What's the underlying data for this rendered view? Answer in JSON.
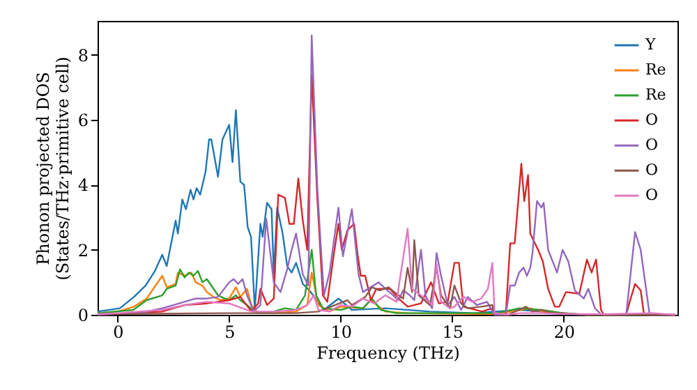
{
  "chart_data": {
    "type": "line",
    "xlabel": "Frequency (THz)",
    "ylabel": "Phonon projected DOS\n(States/THz·primitive cell)",
    "xlim": [
      -0.9,
      25.1
    ],
    "ylim": [
      0,
      9.05
    ],
    "xticks": [
      0,
      5,
      10,
      15,
      20
    ],
    "yticks": [
      0,
      2,
      4,
      6,
      8
    ],
    "legend": "top right",
    "series": [
      {
        "name": "Y",
        "color": "#1f77b4",
        "x": [
          -0.9,
          0.1,
          0.73,
          1.25,
          1.67,
          2.0,
          2.2,
          2.6,
          2.7,
          2.9,
          3.06,
          3.27,
          3.4,
          3.54,
          3.7,
          3.94,
          4.1,
          4.2,
          4.5,
          4.7,
          5.0,
          5.15,
          5.3,
          5.5,
          5.67,
          5.83,
          5.98,
          6.15,
          6.4,
          6.5,
          6.7,
          6.9,
          7.0,
          7.15,
          7.4,
          7.6,
          7.8,
          8.0,
          8.3,
          8.6,
          9.25,
          9.9,
          10.5,
          12.0,
          14.0,
          16.0,
          18.0,
          19.0,
          20.0
        ],
        "values": [
          0.1,
          0.2,
          0.55,
          0.9,
          1.35,
          1.85,
          1.5,
          2.9,
          2.5,
          3.55,
          3.25,
          3.85,
          3.55,
          3.9,
          3.7,
          4.4,
          5.4,
          5.4,
          4.25,
          5.4,
          5.85,
          4.7,
          6.3,
          4.1,
          4.0,
          2.7,
          2.4,
          0.15,
          2.8,
          2.4,
          3.45,
          3.25,
          1.25,
          3.3,
          2.5,
          1.5,
          1.3,
          1.6,
          0.95,
          0.75,
          0.15,
          0.5,
          0.15,
          0.2,
          0.1,
          0.05,
          0.15,
          0.1,
          0.05
        ]
      },
      {
        "name": "Re",
        "color": "#ff7f0e",
        "x": [
          -0.9,
          0.0,
          0.73,
          1.3,
          2.0,
          2.2,
          2.6,
          2.7,
          3.0,
          3.3,
          3.5,
          3.8,
          4.0,
          4.3,
          4.6,
          5.0,
          5.3,
          5.5,
          5.8,
          6.0,
          6.3,
          7.0,
          8.0,
          8.5,
          8.7,
          9.0,
          9.5,
          10.0,
          11.0,
          11.35,
          12.0,
          13.0,
          17.0,
          18.5,
          19.0,
          20.0
        ],
        "values": [
          0.05,
          0.1,
          0.25,
          0.5,
          1.2,
          0.85,
          0.95,
          1.3,
          1.2,
          1.3,
          1.0,
          0.9,
          0.7,
          0.55,
          0.45,
          0.5,
          0.85,
          0.55,
          0.8,
          0.3,
          0.05,
          0.05,
          0.1,
          0.3,
          1.3,
          0.3,
          0.1,
          0.25,
          0.2,
          0.45,
          0.1,
          0.05,
          0.02,
          0.2,
          0.1,
          0.05
        ]
      },
      {
        "name": "Re",
        "color": "#2ca02c",
        "x": [
          -0.9,
          0.7,
          1.3,
          2.0,
          2.2,
          2.6,
          2.8,
          3.0,
          3.2,
          3.4,
          3.6,
          3.8,
          4.0,
          4.2,
          4.5,
          4.8,
          5.0,
          5.3,
          5.5,
          5.8,
          6.2,
          7.0,
          7.5,
          8.0,
          8.4,
          8.7,
          8.9,
          9.2,
          10.0,
          10.5,
          11.0,
          11.4,
          11.8,
          12.5,
          17.0,
          18.0,
          19.0,
          20.0,
          21.0,
          25.0
        ],
        "values": [
          0.05,
          0.15,
          0.45,
          0.6,
          0.8,
          0.9,
          1.4,
          1.15,
          1.3,
          1.2,
          1.35,
          1.0,
          1.1,
          0.9,
          0.6,
          0.5,
          0.45,
          0.6,
          0.45,
          0.3,
          0.05,
          0.1,
          0.2,
          0.15,
          0.6,
          2.0,
          0.6,
          0.2,
          0.15,
          0.25,
          0.2,
          0.5,
          0.15,
          0.05,
          0.05,
          0.2,
          0.15,
          0.05,
          0.0,
          0.0
        ]
      },
      {
        "name": "O",
        "color": "#d62728",
        "x": [
          -0.9,
          2.0,
          3.0,
          4.0,
          5.0,
          5.5,
          6.0,
          6.3,
          6.4,
          6.7,
          7.0,
          7.2,
          7.5,
          7.7,
          7.9,
          8.1,
          8.3,
          8.5,
          8.7,
          8.95,
          9.2,
          9.4,
          9.7,
          9.9,
          10.05,
          10.3,
          10.6,
          10.75,
          10.9,
          11.1,
          11.35,
          11.6,
          12.2,
          12.6,
          13.0,
          13.6,
          14.05,
          14.4,
          14.8,
          15.1,
          15.3,
          15.5,
          16.35,
          16.77,
          16.9,
          17.4,
          17.6,
          17.8,
          18.1,
          18.23,
          18.4,
          18.5,
          18.85,
          19.06,
          19.3,
          19.6,
          19.8,
          20.1,
          20.7,
          21.04,
          21.25,
          21.45,
          21.67,
          21.8,
          22.8,
          23.0,
          23.2,
          23.45,
          23.6,
          25.0
        ],
        "values": [
          0.0,
          0.1,
          0.3,
          0.35,
          0.45,
          0.55,
          0.1,
          0.35,
          0.8,
          0.3,
          0.5,
          3.7,
          3.6,
          2.8,
          2.8,
          4.2,
          2.9,
          2.0,
          7.4,
          3.6,
          0.6,
          0.4,
          1.9,
          2.8,
          2.0,
          2.6,
          2.8,
          1.9,
          1.2,
          1.2,
          0.45,
          0.8,
          0.8,
          0.5,
          0.25,
          0.35,
          1.0,
          0.35,
          0.4,
          1.6,
          1.6,
          0.25,
          0.1,
          0.2,
          0.0,
          0.0,
          2.2,
          2.2,
          4.65,
          3.5,
          4.3,
          2.5,
          2.0,
          1.65,
          0.8,
          0.25,
          0.25,
          0.7,
          0.65,
          1.7,
          1.3,
          1.7,
          0.15,
          0.0,
          0.0,
          0.5,
          0.95,
          0.75,
          0.0,
          0.0
        ]
      },
      {
        "name": "O",
        "color": "#9467bd",
        "x": [
          -0.9,
          1.0,
          2.0,
          3.0,
          3.5,
          4.0,
          4.5,
          5.0,
          5.2,
          5.4,
          5.6,
          5.8,
          6.1,
          6.4,
          6.66,
          7.0,
          7.3,
          7.6,
          7.8,
          8.0,
          8.3,
          8.55,
          8.7,
          8.95,
          9.1,
          9.25,
          9.5,
          9.9,
          10.1,
          10.5,
          10.8,
          11.0,
          11.35,
          11.7,
          12.1,
          12.6,
          12.8,
          13.1,
          13.3,
          13.6,
          13.8,
          14.1,
          14.3,
          14.5,
          14.8,
          15.1,
          15.4,
          15.7,
          16.1,
          16.56,
          16.9,
          17.4,
          17.6,
          17.8,
          18.0,
          18.2,
          18.35,
          18.5,
          18.6,
          18.8,
          19.0,
          19.1,
          19.3,
          19.7,
          19.95,
          20.2,
          20.5,
          20.9,
          21.1,
          21.4,
          21.7,
          22.8,
          23.2,
          23.45,
          23.85,
          25.0
        ],
        "values": [
          0.0,
          0.05,
          0.2,
          0.4,
          0.5,
          0.5,
          0.55,
          1.0,
          1.1,
          0.95,
          1.1,
          0.6,
          0.1,
          0.3,
          2.96,
          1.0,
          0.7,
          1.4,
          2.0,
          2.5,
          1.25,
          0.9,
          8.6,
          3.95,
          2.2,
          0.6,
          1.3,
          3.3,
          1.8,
          3.25,
          1.25,
          0.7,
          0.85,
          1.0,
          0.75,
          0.45,
          0.75,
          0.6,
          0.45,
          2.0,
          0.6,
          0.2,
          1.9,
          1.2,
          0.3,
          0.55,
          0.15,
          0.55,
          0.3,
          0.4,
          0.0,
          0.0,
          0.9,
          0.9,
          1.3,
          1.45,
          1.2,
          1.45,
          1.9,
          3.5,
          3.3,
          3.45,
          2.0,
          1.3,
          2.0,
          1.65,
          0.75,
          0.5,
          0.8,
          0.2,
          0.0,
          0.0,
          2.55,
          2.0,
          0.0,
          0.0
        ]
      },
      {
        "name": "O",
        "color": "#8c564b",
        "x": [
          -0.9,
          5.0,
          8.0,
          9.0,
          10.3,
          10.5,
          11.1,
          11.4,
          11.75,
          12.15,
          12.4,
          12.8,
          13.0,
          13.2,
          13.3,
          13.5,
          14.0,
          14.3,
          14.5,
          14.9,
          15.1,
          15.4,
          15.7,
          16.3,
          16.8,
          16.9,
          17.5,
          18.0,
          18.3,
          18.6,
          19.0,
          19.5,
          20.0,
          21.0,
          25.0
        ],
        "values": [
          0.02,
          0.05,
          0.05,
          0.1,
          0.45,
          0.3,
          0.55,
          0.85,
          0.75,
          0.85,
          0.7,
          0.5,
          1.45,
          0.7,
          2.3,
          0.6,
          0.3,
          1.45,
          0.6,
          0.2,
          0.9,
          0.35,
          0.2,
          0.25,
          0.3,
          0.05,
          0.0,
          0.15,
          0.25,
          0.1,
          0.15,
          0.05,
          0.05,
          0.0,
          0.0
        ]
      },
      {
        "name": "O",
        "color": "#e377c2",
        "x": [
          -0.9,
          0.0,
          2.0,
          3.0,
          4.0,
          5.0,
          6.0,
          7.0,
          8.0,
          8.5,
          8.8,
          9.0,
          9.5,
          10.0,
          10.5,
          11.0,
          11.5,
          12.0,
          12.5,
          13.0,
          13.2,
          13.7,
          14.1,
          14.3,
          14.5,
          14.9,
          15.1,
          15.5,
          15.9,
          16.3,
          16.6,
          16.8,
          16.9,
          17.5,
          18.0,
          19.0,
          20.0,
          22.0,
          24.0,
          25.0
        ],
        "values": [
          0.02,
          0.05,
          0.15,
          0.3,
          0.4,
          0.35,
          0.1,
          0.1,
          0.15,
          0.3,
          0.6,
          0.15,
          0.1,
          0.3,
          0.25,
          0.5,
          0.35,
          0.6,
          0.4,
          2.65,
          0.8,
          0.55,
          0.3,
          1.55,
          0.4,
          0.2,
          0.25,
          0.55,
          0.4,
          0.5,
          0.8,
          1.6,
          0.05,
          0.0,
          0.05,
          0.05,
          0.02,
          0.02,
          0.05,
          0.0
        ]
      }
    ]
  }
}
